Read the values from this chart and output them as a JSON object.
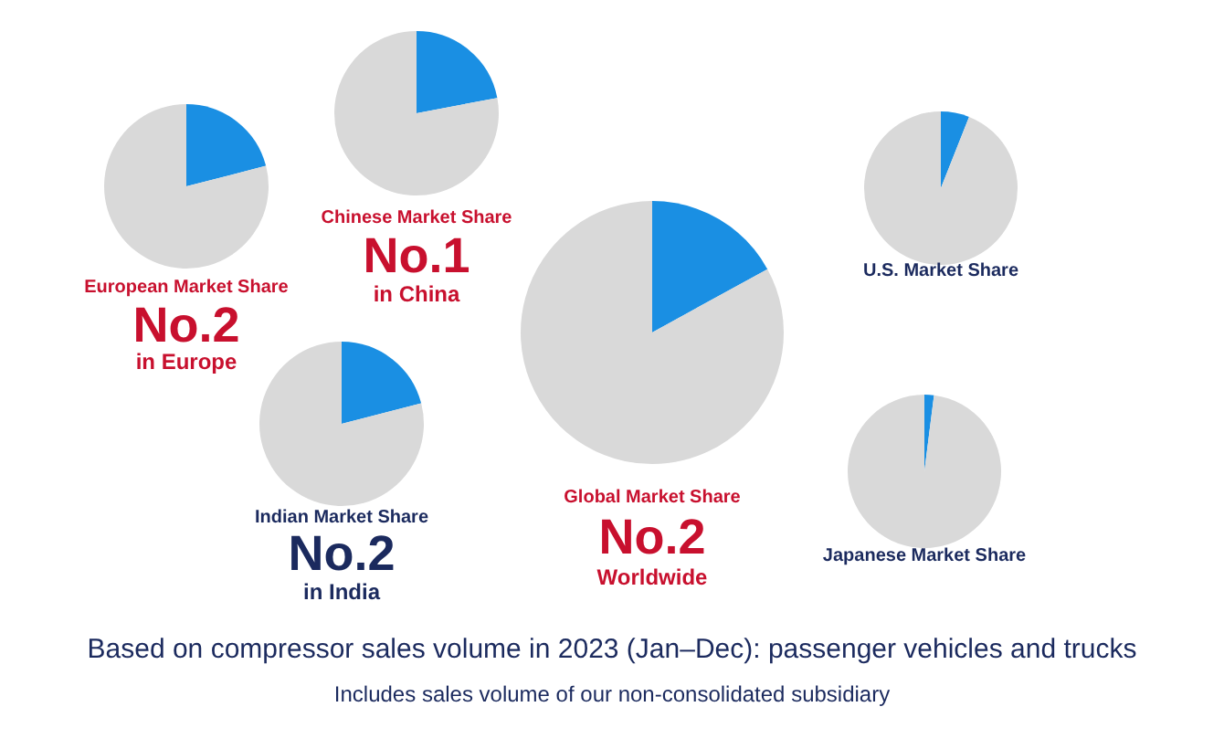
{
  "chart_data": [
    {
      "type": "pie",
      "title": "European Market Share",
      "annotations": [
        "No.2",
        "in Europe"
      ],
      "categories": [
        null,
        null
      ],
      "values": [
        21,
        79
      ],
      "colors": [
        "#1a8fe3",
        "#d9d9d9"
      ]
    },
    {
      "type": "pie",
      "title": "Chinese Market Share",
      "annotations": [
        "No.1",
        "in China"
      ],
      "categories": [
        null,
        null
      ],
      "values": [
        22,
        78
      ],
      "colors": [
        "#1a8fe3",
        "#d9d9d9"
      ]
    },
    {
      "type": "pie",
      "title": "Indian Market Share",
      "annotations": [
        "No.2",
        "in India"
      ],
      "categories": [
        null,
        null
      ],
      "values": [
        21,
        79
      ],
      "colors": [
        "#1a8fe3",
        "#d9d9d9"
      ]
    },
    {
      "type": "pie",
      "title": "Global Market Share",
      "annotations": [
        "No.2",
        "Worldwide"
      ],
      "categories": [
        null,
        null
      ],
      "values": [
        17,
        83
      ],
      "colors": [
        "#1a8fe3",
        "#d9d9d9"
      ]
    },
    {
      "type": "pie",
      "title": "U.S. Market Share",
      "categories": [
        null,
        null
      ],
      "values": [
        6,
        94
      ],
      "colors": [
        "#1a8fe3",
        "#d9d9d9"
      ]
    },
    {
      "type": "pie",
      "title": "Japanese Market Share",
      "categories": [
        null,
        null
      ],
      "values": [
        2,
        98
      ],
      "colors": [
        "#1a8fe3",
        "#d9d9d9"
      ]
    },
    {
      "type": "other",
      "annotations": [
        "Based on compressor sales volume in 2023 (Jan–Dec): passenger vehicles and trucks",
        "Includes sales volume of our non-consolidated subsidiary"
      ]
    }
  ]
}
